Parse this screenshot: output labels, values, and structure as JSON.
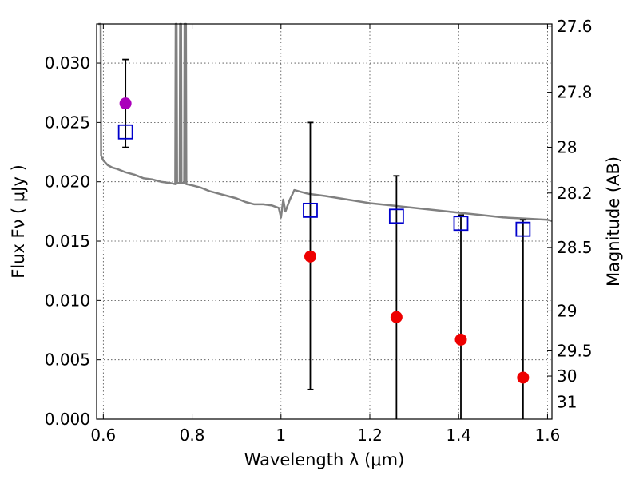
{
  "chart_data": {
    "type": "scatter",
    "xlabel": "Wavelength  λ (μm)",
    "ylabel": "Flux  Fν  ( μJy )",
    "y2label": "Magnitude (AB)",
    "xlim": [
      0.585,
      1.61
    ],
    "ylim": [
      0.0,
      0.0333
    ],
    "grid": true,
    "x_ticks": [
      {
        "v": 0.6,
        "label": "0.6"
      },
      {
        "v": 0.8,
        "label": "0.8"
      },
      {
        "v": 1.0,
        "label": "1"
      },
      {
        "v": 1.2,
        "label": "1.2"
      },
      {
        "v": 1.4,
        "label": "1.4"
      },
      {
        "v": 1.6,
        "label": "1.6"
      }
    ],
    "y_ticks": [
      {
        "v": 0.0,
        "label": "0.000"
      },
      {
        "v": 0.005,
        "label": "0.005"
      },
      {
        "v": 0.01,
        "label": "0.010"
      },
      {
        "v": 0.015,
        "label": "0.015"
      },
      {
        "v": 0.02,
        "label": "0.020"
      },
      {
        "v": 0.025,
        "label": "0.025"
      },
      {
        "v": 0.03,
        "label": "0.030"
      }
    ],
    "y2_ticks": [
      {
        "mag": 27.6,
        "label": "27.6"
      },
      {
        "mag": 27.8,
        "label": "27.8"
      },
      {
        "mag": 28.0,
        "label": "28"
      },
      {
        "mag": 28.2,
        "label": "28.2"
      },
      {
        "mag": 28.5,
        "label": "28.5"
      },
      {
        "mag": 29.0,
        "label": "29"
      },
      {
        "mag": 29.5,
        "label": "29.5"
      },
      {
        "mag": 30.0,
        "label": "30"
      },
      {
        "mag": 31.0,
        "label": "31"
      }
    ],
    "model_spectrum": {
      "color": "#808080",
      "points": [
        [
          0.589,
          0.0333
        ],
        [
          0.594,
          0.0333
        ],
        [
          0.595,
          0.0222
        ],
        [
          0.6,
          0.0218
        ],
        [
          0.61,
          0.0214
        ],
        [
          0.62,
          0.0212
        ],
        [
          0.63,
          0.0211
        ],
        [
          0.65,
          0.0208
        ],
        [
          0.67,
          0.0206
        ],
        [
          0.69,
          0.0203
        ],
        [
          0.71,
          0.0202
        ],
        [
          0.73,
          0.02
        ],
        [
          0.75,
          0.0199
        ],
        [
          0.762,
          0.0198
        ],
        [
          0.763,
          0.0333
        ],
        [
          0.765,
          0.0333
        ],
        [
          0.766,
          0.0199
        ],
        [
          0.772,
          0.0199
        ],
        [
          0.773,
          0.0333
        ],
        [
          0.775,
          0.0333
        ],
        [
          0.776,
          0.0199
        ],
        [
          0.782,
          0.0199
        ],
        [
          0.783,
          0.0333
        ],
        [
          0.786,
          0.0333
        ],
        [
          0.787,
          0.0198
        ],
        [
          0.8,
          0.0197
        ],
        [
          0.82,
          0.0195
        ],
        [
          0.84,
          0.0192
        ],
        [
          0.86,
          0.019
        ],
        [
          0.88,
          0.0188
        ],
        [
          0.9,
          0.0186
        ],
        [
          0.92,
          0.0183
        ],
        [
          0.94,
          0.0181
        ],
        [
          0.96,
          0.0181
        ],
        [
          0.98,
          0.018
        ],
        [
          0.995,
          0.0178
        ],
        [
          1.0,
          0.017
        ],
        [
          1.005,
          0.0185
        ],
        [
          1.01,
          0.0175
        ],
        [
          1.02,
          0.0185
        ],
        [
          1.03,
          0.0193
        ],
        [
          1.04,
          0.0192
        ],
        [
          1.06,
          0.019
        ],
        [
          1.1,
          0.0188
        ],
        [
          1.15,
          0.0185
        ],
        [
          1.2,
          0.0182
        ],
        [
          1.25,
          0.018
        ],
        [
          1.3,
          0.0178
        ],
        [
          1.35,
          0.0176
        ],
        [
          1.4,
          0.0174
        ],
        [
          1.45,
          0.0172
        ],
        [
          1.5,
          0.017
        ],
        [
          1.55,
          0.0169
        ],
        [
          1.6,
          0.0168
        ],
        [
          1.61,
          0.0167
        ]
      ]
    },
    "model_photometry": {
      "marker": "open-square",
      "color": "#0000cc",
      "points": [
        {
          "x": 0.65,
          "y": 0.0242
        },
        {
          "x": 1.066,
          "y": 0.0176
        },
        {
          "x": 1.26,
          "y": 0.0171
        },
        {
          "x": 1.405,
          "y": 0.0165
        },
        {
          "x": 1.545,
          "y": 0.016
        }
      ]
    },
    "observed": {
      "marker": "filled-circle",
      "points": [
        {
          "x": 0.65,
          "y": 0.0266,
          "err_low": 0.0229,
          "err_high": 0.0303,
          "color": "#aa00bb"
        },
        {
          "x": 1.066,
          "y": 0.0137,
          "err_low": 0.0025,
          "err_high": 0.025,
          "color": "#ee0000"
        },
        {
          "x": 1.26,
          "y": 0.0086,
          "err_low": 0.0,
          "err_high": 0.0205,
          "color": "#ee0000"
        },
        {
          "x": 1.405,
          "y": 0.0067,
          "err_low": 0.0,
          "err_high": 0.0172,
          "color": "#ee0000"
        },
        {
          "x": 1.545,
          "y": 0.0035,
          "err_low": 0.0,
          "err_high": 0.0168,
          "color": "#ee0000"
        }
      ]
    }
  }
}
